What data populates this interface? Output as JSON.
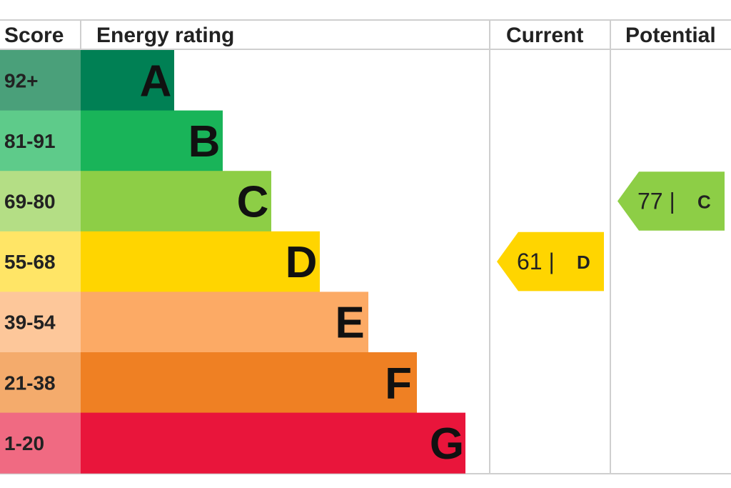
{
  "chart_data": {
    "type": "bar",
    "headers": {
      "score": "Score",
      "rating": "Energy rating",
      "current": "Current",
      "potential": "Potential"
    },
    "bands": [
      {
        "score": "92+",
        "letter": "A",
        "color": "#008054",
        "score_color": "#4aa07a"
      },
      {
        "score": "81-91",
        "letter": "B",
        "color": "#19b459",
        "score_color": "#5ecb8a"
      },
      {
        "score": "69-80",
        "letter": "C",
        "color": "#8dce46",
        "score_color": "#b4de85"
      },
      {
        "score": "55-68",
        "letter": "D",
        "color": "#ffd500",
        "score_color": "#ffe566"
      },
      {
        "score": "39-54",
        "letter": "E",
        "color": "#fcaa65",
        "score_color": "#fdc79a"
      },
      {
        "score": "21-38",
        "letter": "F",
        "color": "#ef8023",
        "score_color": "#f4ab6c"
      },
      {
        "score": "1-20",
        "letter": "G",
        "color": "#e9153b",
        "score_color": "#f06a82"
      }
    ],
    "current": {
      "value": 61,
      "letter": "D",
      "color": "#ffd500"
    },
    "potential": {
      "value": 77,
      "letter": "C",
      "color": "#8dce46"
    }
  }
}
